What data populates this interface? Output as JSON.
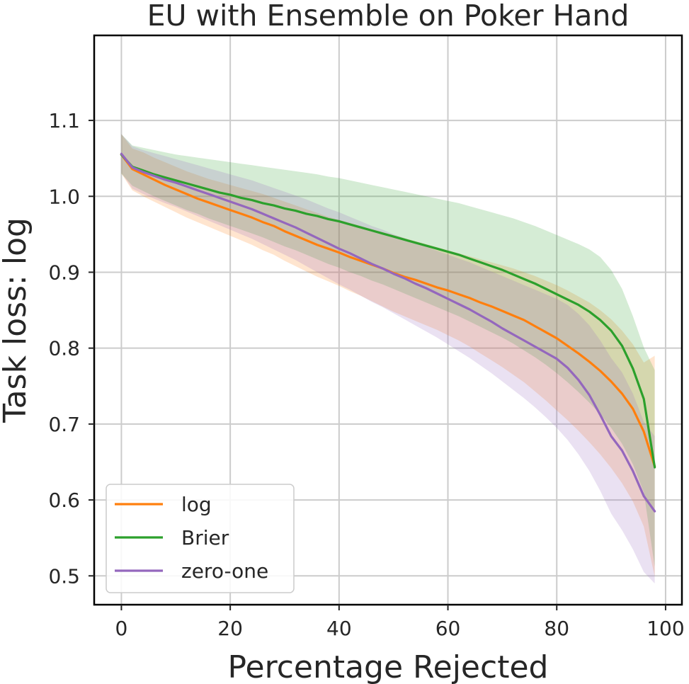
{
  "chart_data": {
    "type": "line",
    "title": "EU with Ensemble on Poker Hand",
    "xlabel": "Percentage Rejected",
    "ylabel": "Task loss: log",
    "xlim": [
      -5,
      103
    ],
    "ylim": [
      0.462,
      1.212
    ],
    "xticks": [
      0,
      20,
      40,
      60,
      80,
      100
    ],
    "yticks": [
      0.5,
      0.6,
      0.7,
      0.8,
      0.9,
      1.0,
      1.1
    ],
    "xtick_labels": [
      "0",
      "20",
      "40",
      "60",
      "80",
      "100"
    ],
    "ytick_labels": [
      "0.5",
      "0.6",
      "0.7",
      "0.8",
      "0.9",
      "1.0",
      "1.1"
    ],
    "grid": true,
    "legend_position": "lower-left",
    "x": [
      0,
      2,
      4,
      6,
      8,
      10,
      12,
      14,
      16,
      18,
      20,
      22,
      24,
      26,
      28,
      30,
      32,
      34,
      36,
      38,
      40,
      42,
      44,
      46,
      48,
      50,
      52,
      54,
      56,
      58,
      60,
      62,
      64,
      66,
      68,
      70,
      72,
      74,
      76,
      78,
      80,
      82,
      84,
      86,
      88,
      90,
      92,
      94,
      96,
      98
    ],
    "series": [
      {
        "name": "log",
        "color": "#ff7f0e",
        "values": [
          1.055,
          1.036,
          1.029,
          1.022,
          1.015,
          1.009,
          1.003,
          0.997,
          0.992,
          0.987,
          0.982,
          0.977,
          0.972,
          0.966,
          0.961,
          0.954,
          0.948,
          0.942,
          0.936,
          0.931,
          0.926,
          0.92,
          0.915,
          0.91,
          0.905,
          0.899,
          0.894,
          0.89,
          0.885,
          0.88,
          0.876,
          0.871,
          0.866,
          0.86,
          0.855,
          0.849,
          0.843,
          0.837,
          0.829,
          0.821,
          0.813,
          0.803,
          0.793,
          0.782,
          0.77,
          0.756,
          0.74,
          0.72,
          0.69,
          0.644
        ],
        "lower": [
          1.03,
          1.008,
          1.0,
          0.993,
          0.986,
          0.979,
          0.972,
          0.966,
          0.96,
          0.954,
          0.948,
          0.942,
          0.936,
          0.929,
          0.923,
          0.915,
          0.908,
          0.901,
          0.894,
          0.888,
          0.882,
          0.875,
          0.869,
          0.862,
          0.855,
          0.848,
          0.842,
          0.836,
          0.83,
          0.824,
          0.817,
          0.81,
          0.802,
          0.793,
          0.784,
          0.775,
          0.765,
          0.755,
          0.743,
          0.731,
          0.718,
          0.705,
          0.691,
          0.676,
          0.66,
          0.642,
          0.622,
          0.598,
          0.565,
          0.499
        ],
        "upper": [
          1.082,
          1.063,
          1.058,
          1.051,
          1.045,
          1.039,
          1.033,
          1.028,
          1.023,
          1.019,
          1.015,
          1.011,
          1.007,
          1.003,
          0.998,
          0.993,
          0.988,
          0.983,
          0.978,
          0.973,
          0.969,
          0.965,
          0.961,
          0.957,
          0.953,
          0.949,
          0.945,
          0.941,
          0.937,
          0.933,
          0.929,
          0.925,
          0.921,
          0.917,
          0.913,
          0.909,
          0.905,
          0.9,
          0.895,
          0.889,
          0.883,
          0.876,
          0.868,
          0.86,
          0.85,
          0.838,
          0.823,
          0.805,
          0.781,
          0.79
        ]
      },
      {
        "name": "Brier",
        "color": "#2ca02c",
        "values": [
          1.055,
          1.039,
          1.034,
          1.029,
          1.025,
          1.021,
          1.017,
          1.013,
          1.009,
          1.005,
          1.002,
          0.998,
          0.995,
          0.991,
          0.988,
          0.984,
          0.981,
          0.977,
          0.974,
          0.97,
          0.967,
          0.963,
          0.959,
          0.955,
          0.951,
          0.947,
          0.943,
          0.939,
          0.935,
          0.931,
          0.927,
          0.923,
          0.918,
          0.913,
          0.908,
          0.903,
          0.897,
          0.891,
          0.885,
          0.878,
          0.871,
          0.864,
          0.857,
          0.848,
          0.837,
          0.823,
          0.803,
          0.773,
          0.733,
          0.643
        ],
        "lower": [
          1.03,
          1.014,
          1.007,
          1.0,
          0.994,
          0.988,
          0.982,
          0.977,
          0.971,
          0.966,
          0.961,
          0.956,
          0.951,
          0.946,
          0.94,
          0.934,
          0.929,
          0.923,
          0.917,
          0.911,
          0.906,
          0.9,
          0.895,
          0.889,
          0.884,
          0.878,
          0.872,
          0.866,
          0.86,
          0.854,
          0.848,
          0.842,
          0.835,
          0.828,
          0.821,
          0.814,
          0.806,
          0.797,
          0.788,
          0.778,
          0.767,
          0.755,
          0.742,
          0.728,
          0.713,
          0.695,
          0.674,
          0.647,
          0.61,
          0.512
        ],
        "upper": [
          1.082,
          1.067,
          1.064,
          1.061,
          1.058,
          1.055,
          1.053,
          1.051,
          1.049,
          1.047,
          1.045,
          1.043,
          1.041,
          1.039,
          1.037,
          1.035,
          1.033,
          1.031,
          1.029,
          1.026,
          1.024,
          1.021,
          1.018,
          1.015,
          1.012,
          1.009,
          1.006,
          1.003,
          1.0,
          0.997,
          0.994,
          0.991,
          0.987,
          0.983,
          0.979,
          0.975,
          0.971,
          0.966,
          0.961,
          0.955,
          0.949,
          0.943,
          0.937,
          0.93,
          0.92,
          0.903,
          0.878,
          0.842,
          0.801,
          0.771
        ]
      },
      {
        "name": "zero-one",
        "color": "#9467bd",
        "values": [
          1.056,
          1.038,
          1.032,
          1.027,
          1.022,
          1.018,
          1.013,
          1.008,
          1.003,
          0.998,
          0.993,
          0.988,
          0.983,
          0.977,
          0.971,
          0.965,
          0.959,
          0.952,
          0.945,
          0.938,
          0.931,
          0.925,
          0.918,
          0.911,
          0.905,
          0.898,
          0.892,
          0.885,
          0.879,
          0.872,
          0.865,
          0.858,
          0.851,
          0.843,
          0.835,
          0.826,
          0.818,
          0.81,
          0.802,
          0.794,
          0.786,
          0.774,
          0.758,
          0.738,
          0.712,
          0.684,
          0.665,
          0.638,
          0.605,
          0.585
        ],
        "lower": [
          1.031,
          1.01,
          1.003,
          0.997,
          0.991,
          0.986,
          0.98,
          0.974,
          0.968,
          0.962,
          0.956,
          0.95,
          0.944,
          0.937,
          0.93,
          0.923,
          0.916,
          0.908,
          0.9,
          0.892,
          0.884,
          0.877,
          0.869,
          0.861,
          0.854,
          0.846,
          0.838,
          0.83,
          0.822,
          0.814,
          0.805,
          0.796,
          0.787,
          0.777,
          0.767,
          0.756,
          0.745,
          0.734,
          0.722,
          0.709,
          0.695,
          0.679,
          0.66,
          0.638,
          0.612,
          0.582,
          0.56,
          0.535,
          0.505,
          0.49
        ],
        "upper": [
          1.082,
          1.066,
          1.061,
          1.057,
          1.053,
          1.049,
          1.045,
          1.041,
          1.037,
          1.033,
          1.029,
          1.025,
          1.021,
          1.016,
          1.011,
          1.006,
          1.001,
          0.996,
          0.99,
          0.984,
          0.979,
          0.973,
          0.967,
          0.961,
          0.956,
          0.95,
          0.945,
          0.939,
          0.934,
          0.928,
          0.923,
          0.918,
          0.913,
          0.907,
          0.901,
          0.895,
          0.889,
          0.883,
          0.877,
          0.871,
          0.865,
          0.857,
          0.845,
          0.83,
          0.81,
          0.787,
          0.768,
          0.74,
          0.703,
          0.684
        ]
      }
    ]
  }
}
